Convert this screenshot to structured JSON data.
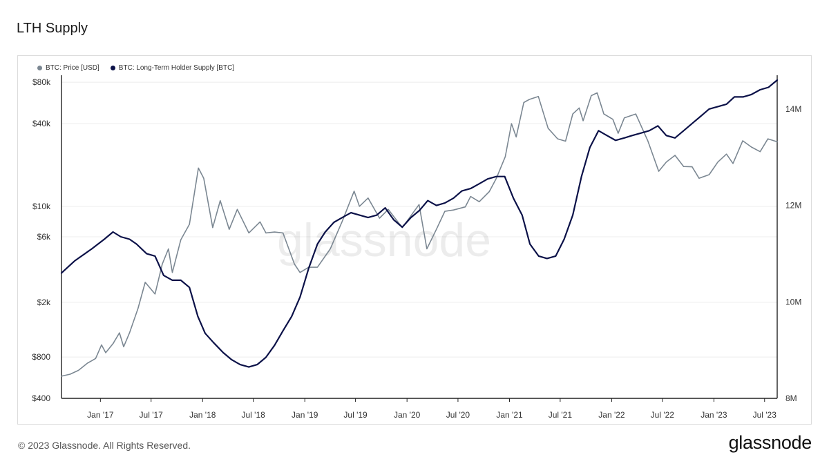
{
  "title": "LTH Supply",
  "footer": {
    "copyright": "© 2023 Glassnode. All Rights Reserved.",
    "logo_text": "glassnode"
  },
  "watermark": "glassnode",
  "colors": {
    "price": "#7b8792",
    "supply": "#0b1148",
    "grid": "#ececec",
    "axis": "#222222"
  },
  "chart_data": {
    "type": "line",
    "legend": [
      {
        "name": "BTC: Price [USD]",
        "color": "#7b8792"
      },
      {
        "name": "BTC: Long-Term Holder Supply [BTC]",
        "color": "#0b1148"
      }
    ],
    "x_ticks": [
      "Jan '17",
      "Jul '17",
      "Jan '18",
      "Jul '18",
      "Jan '19",
      "Jul '19",
      "Jan '20",
      "Jul '20",
      "Jan '21",
      "Jul '21",
      "Jan '22",
      "Jul '22",
      "Jan '23",
      "Jul '23"
    ],
    "xlim": [
      "2016-08-15",
      "2023-08-15"
    ],
    "y_left": {
      "scale": "log",
      "ticks": [
        400,
        800,
        2000,
        6000,
        10000,
        40000,
        80000
      ],
      "tick_labels": [
        "$400",
        "$800",
        "$2k",
        "$6k",
        "$10k",
        "$40k",
        "$80k"
      ],
      "ylim": [
        400,
        90000
      ]
    },
    "y_right": {
      "scale": "linear",
      "ticks": [
        8000000,
        10000000,
        12000000,
        14000000
      ],
      "tick_labels": [
        "8M",
        "10M",
        "12M",
        "14M"
      ],
      "ylim": [
        8000000,
        14700000
      ]
    },
    "series": [
      {
        "name": "BTC: Price [USD]",
        "axis": "left",
        "x": [
          "2016-08-15",
          "2016-09-15",
          "2016-10-15",
          "2016-11-15",
          "2016-12-15",
          "2017-01-05",
          "2017-01-20",
          "2017-02-15",
          "2017-03-10",
          "2017-03-25",
          "2017-04-15",
          "2017-05-15",
          "2017-06-10",
          "2017-07-15",
          "2017-08-10",
          "2017-09-01",
          "2017-09-15",
          "2017-10-15",
          "2017-11-15",
          "2017-12-17",
          "2018-01-05",
          "2018-02-06",
          "2018-03-05",
          "2018-04-06",
          "2018-05-05",
          "2018-06-15",
          "2018-07-25",
          "2018-08-15",
          "2018-09-15",
          "2018-10-15",
          "2018-11-25",
          "2018-12-15",
          "2019-01-15",
          "2019-02-15",
          "2019-04-02",
          "2019-05-15",
          "2019-06-26",
          "2019-07-15",
          "2019-08-15",
          "2019-09-25",
          "2019-10-26",
          "2019-12-15",
          "2020-02-13",
          "2020-03-12",
          "2020-04-15",
          "2020-05-15",
          "2020-06-15",
          "2020-07-27",
          "2020-08-15",
          "2020-09-15",
          "2020-10-21",
          "2020-11-15",
          "2020-12-17",
          "2021-01-08",
          "2021-01-25",
          "2021-02-21",
          "2021-03-13",
          "2021-04-14",
          "2021-05-19",
          "2021-06-22",
          "2021-07-20",
          "2021-08-15",
          "2021-09-07",
          "2021-09-21",
          "2021-10-20",
          "2021-11-10",
          "2021-12-04",
          "2022-01-05",
          "2022-01-24",
          "2022-02-15",
          "2022-03-28",
          "2022-05-10",
          "2022-06-18",
          "2022-07-15",
          "2022-08-15",
          "2022-09-15",
          "2022-10-15",
          "2022-11-09",
          "2022-12-15",
          "2023-01-15",
          "2023-02-15",
          "2023-03-10",
          "2023-04-14",
          "2023-05-15",
          "2023-06-15",
          "2023-07-13",
          "2023-08-15"
        ],
        "values": [
          580,
          600,
          640,
          720,
          780,
          980,
          860,
          1000,
          1200,
          950,
          1200,
          1800,
          2800,
          2300,
          3800,
          4900,
          3300,
          5700,
          7400,
          19000,
          16000,
          7000,
          11000,
          6800,
          9500,
          6400,
          7700,
          6400,
          6500,
          6400,
          3800,
          3300,
          3600,
          3600,
          4900,
          7800,
          12900,
          10000,
          11500,
          8200,
          9500,
          7000,
          10300,
          4900,
          6800,
          9200,
          9400,
          9900,
          11800,
          10800,
          12800,
          16000,
          23000,
          40000,
          32000,
          57000,
          60000,
          63000,
          37000,
          31000,
          29800,
          47000,
          52000,
          42000,
          64000,
          67000,
          47000,
          43000,
          34000,
          44000,
          47000,
          30000,
          18000,
          21000,
          23500,
          19500,
          19400,
          16000,
          17000,
          21000,
          24000,
          20500,
          30000,
          27000,
          25000,
          31000,
          29500
        ]
      },
      {
        "name": "BTC: Long-Term Holder Supply [BTC]",
        "axis": "right",
        "x": [
          "2016-08-15",
          "2016-10-01",
          "2016-12-01",
          "2017-01-15",
          "2017-02-15",
          "2017-03-15",
          "2017-04-15",
          "2017-05-10",
          "2017-06-15",
          "2017-07-15",
          "2017-08-15",
          "2017-09-15",
          "2017-10-15",
          "2017-11-15",
          "2017-12-15",
          "2018-01-10",
          "2018-02-10",
          "2018-03-15",
          "2018-04-15",
          "2018-05-15",
          "2018-06-15",
          "2018-07-15",
          "2018-08-15",
          "2018-09-15",
          "2018-10-15",
          "2018-11-15",
          "2018-12-15",
          "2019-01-15",
          "2019-02-15",
          "2019-03-15",
          "2019-04-15",
          "2019-05-15",
          "2019-06-15",
          "2019-07-15",
          "2019-08-15",
          "2019-09-15",
          "2019-10-15",
          "2019-11-15",
          "2019-12-15",
          "2020-01-15",
          "2020-02-15",
          "2020-03-15",
          "2020-04-15",
          "2020-05-15",
          "2020-06-15",
          "2020-07-15",
          "2020-08-15",
          "2020-09-15",
          "2020-10-15",
          "2020-11-15",
          "2020-12-15",
          "2021-01-15",
          "2021-02-15",
          "2021-03-15",
          "2021-04-15",
          "2021-05-15",
          "2021-06-15",
          "2021-07-15",
          "2021-08-15",
          "2021-09-15",
          "2021-10-15",
          "2021-11-15",
          "2021-12-15",
          "2022-01-15",
          "2022-02-15",
          "2022-03-15",
          "2022-04-15",
          "2022-05-15",
          "2022-06-15",
          "2022-07-15",
          "2022-08-15",
          "2022-09-15",
          "2022-10-15",
          "2022-11-15",
          "2022-12-15",
          "2023-01-15",
          "2023-02-15",
          "2023-03-15",
          "2023-04-15",
          "2023-05-15",
          "2023-06-15",
          "2023-07-15",
          "2023-08-15"
        ],
        "values": [
          10600000,
          10850000,
          11100000,
          11300000,
          11450000,
          11350000,
          11300000,
          11200000,
          11000000,
          10950000,
          10550000,
          10450000,
          10450000,
          10300000,
          9700000,
          9350000,
          9150000,
          8950000,
          8800000,
          8700000,
          8650000,
          8700000,
          8850000,
          9100000,
          9400000,
          9700000,
          10100000,
          10700000,
          11200000,
          11450000,
          11650000,
          11750000,
          11850000,
          11800000,
          11750000,
          11800000,
          11950000,
          11700000,
          11550000,
          11750000,
          11900000,
          12100000,
          12000000,
          12050000,
          12150000,
          12300000,
          12350000,
          12450000,
          12550000,
          12600000,
          12600000,
          12150000,
          11800000,
          11200000,
          10950000,
          10900000,
          10950000,
          11300000,
          11800000,
          12600000,
          13200000,
          13550000,
          13450000,
          13350000,
          13400000,
          13450000,
          13500000,
          13550000,
          13650000,
          13450000,
          13400000,
          13550000,
          13700000,
          13850000,
          14000000,
          14050000,
          14100000,
          14250000,
          14250000,
          14300000,
          14400000,
          14450000,
          14600000
        ]
      }
    ]
  }
}
